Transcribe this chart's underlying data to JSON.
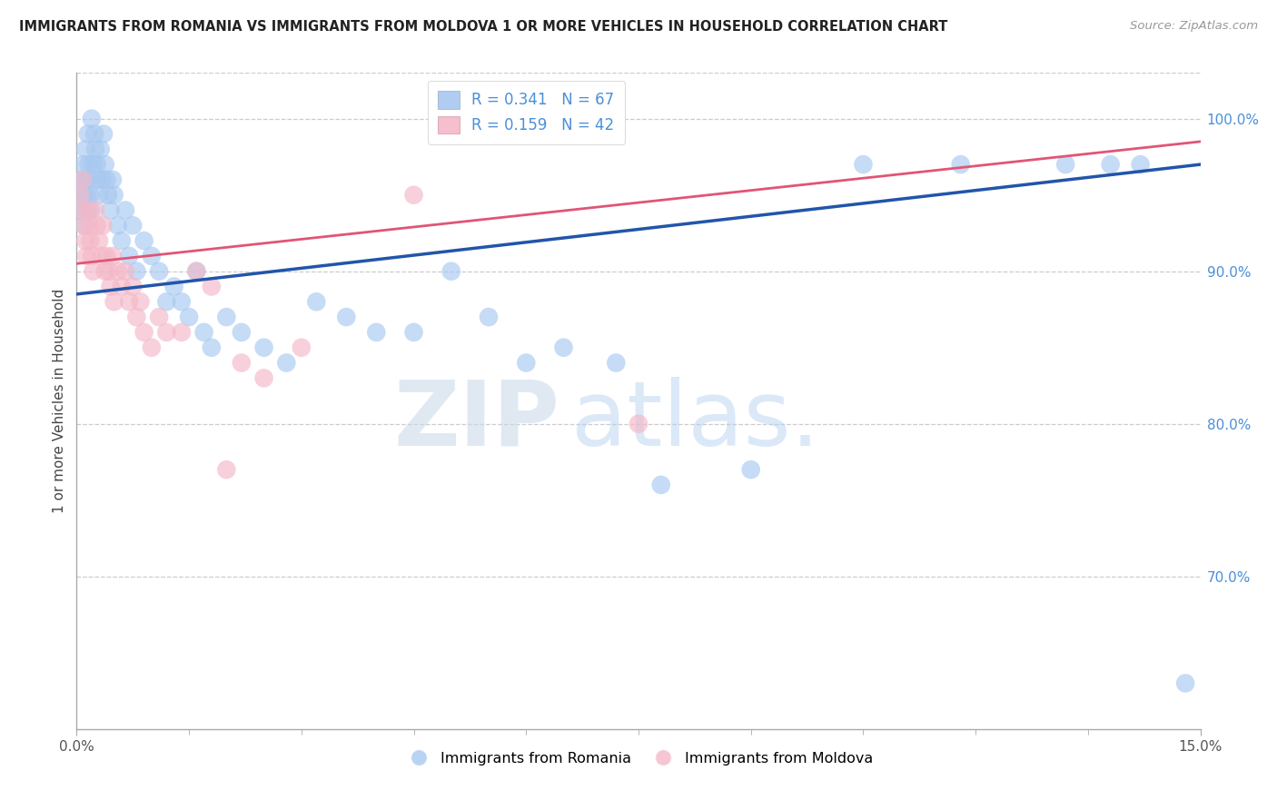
{
  "title": "IMMIGRANTS FROM ROMANIA VS IMMIGRANTS FROM MOLDOVA 1 OR MORE VEHICLES IN HOUSEHOLD CORRELATION CHART",
  "source": "Source: ZipAtlas.com",
  "ylabel": "1 or more Vehicles in Household",
  "legend_label_blue": "Immigrants from Romania",
  "legend_label_pink": "Immigrants from Moldova",
  "R_blue": 0.341,
  "N_blue": 67,
  "R_pink": 0.159,
  "N_pink": 42,
  "blue_color": "#a8c8f0",
  "pink_color": "#f4b8c8",
  "blue_line_color": "#2255aa",
  "pink_line_color": "#e05575",
  "right_yticks": [
    70.0,
    80.0,
    90.0,
    100.0
  ],
  "right_ytick_labels": [
    "70.0%",
    "80.0%",
    "90.0%",
    "100.0%"
  ],
  "xmin": 0.0,
  "xmax": 15.0,
  "ymin": 60.0,
  "ymax": 103.0,
  "watermark_zip": "ZIP",
  "watermark_atlas": "atlas.",
  "romania_x": [
    0.05,
    0.07,
    0.08,
    0.09,
    0.1,
    0.11,
    0.12,
    0.13,
    0.14,
    0.15,
    0.16,
    0.17,
    0.18,
    0.19,
    0.2,
    0.22,
    0.24,
    0.25,
    0.27,
    0.28,
    0.3,
    0.32,
    0.34,
    0.36,
    0.38,
    0.4,
    0.42,
    0.45,
    0.48,
    0.5,
    0.55,
    0.6,
    0.65,
    0.7,
    0.75,
    0.8,
    0.9,
    1.0,
    1.1,
    1.2,
    1.3,
    1.4,
    1.5,
    1.6,
    1.7,
    1.8,
    2.0,
    2.2,
    2.5,
    2.8,
    3.2,
    3.6,
    4.0,
    4.5,
    5.0,
    5.5,
    6.0,
    6.5,
    7.2,
    7.8,
    9.0,
    10.5,
    11.8,
    13.2,
    13.8,
    14.2,
    14.8
  ],
  "romania_y": [
    94,
    96,
    95,
    97,
    93,
    96,
    98,
    95,
    94,
    99,
    97,
    96,
    95,
    94,
    100,
    97,
    99,
    98,
    97,
    96,
    95,
    98,
    96,
    99,
    97,
    96,
    95,
    94,
    96,
    95,
    93,
    92,
    94,
    91,
    93,
    90,
    92,
    91,
    90,
    88,
    89,
    88,
    87,
    90,
    86,
    85,
    87,
    86,
    85,
    84,
    88,
    87,
    86,
    86,
    90,
    87,
    84,
    85,
    84,
    76,
    77,
    97,
    97,
    97,
    97,
    97,
    63
  ],
  "moldova_x": [
    0.05,
    0.07,
    0.08,
    0.1,
    0.12,
    0.13,
    0.15,
    0.17,
    0.18,
    0.2,
    0.22,
    0.25,
    0.27,
    0.3,
    0.33,
    0.35,
    0.38,
    0.4,
    0.43,
    0.45,
    0.48,
    0.5,
    0.55,
    0.6,
    0.65,
    0.7,
    0.75,
    0.8,
    0.85,
    0.9,
    1.0,
    1.1,
    1.2,
    1.4,
    1.6,
    1.8,
    2.0,
    2.2,
    2.5,
    3.0,
    4.5,
    7.5
  ],
  "moldova_y": [
    95,
    94,
    96,
    93,
    92,
    91,
    94,
    93,
    92,
    91,
    90,
    94,
    93,
    92,
    91,
    93,
    90,
    91,
    90,
    89,
    91,
    88,
    90,
    89,
    90,
    88,
    89,
    87,
    88,
    86,
    85,
    87,
    86,
    86,
    90,
    89,
    77,
    84,
    83,
    85,
    95,
    80
  ],
  "trendline_romania_y0": 88.5,
  "trendline_romania_y1": 97.0,
  "trendline_moldova_y0": 90.5,
  "trendline_moldova_y1": 98.5
}
